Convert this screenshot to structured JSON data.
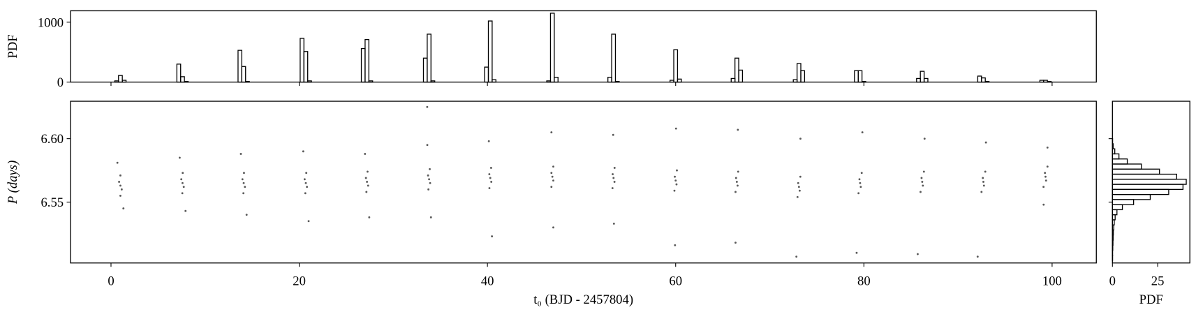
{
  "chart_data": [
    {
      "type": "histogram",
      "orientation": "vertical",
      "ylabel": "PDF",
      "color": "#000000",
      "bins": [
        0.4,
        0.8,
        1.2,
        1.6,
        7.0,
        7.4,
        7.8,
        8.2,
        13.5,
        13.9,
        14.3,
        14.7,
        20.1,
        20.5,
        20.9,
        21.3,
        26.6,
        27.0,
        27.4,
        27.8,
        33.2,
        33.6,
        34.0,
        34.4,
        39.7,
        40.1,
        40.5,
        40.9,
        46.3,
        46.7,
        47.1,
        47.5,
        52.8,
        53.2,
        53.6,
        54.0,
        59.4,
        59.8,
        60.2,
        60.6,
        65.9,
        66.3,
        66.7,
        67.1,
        72.5,
        72.9,
        73.3,
        73.7,
        79.0,
        79.4,
        79.8,
        80.2,
        85.6,
        86.0,
        86.4,
        86.8,
        92.1,
        92.5,
        92.9,
        93.3,
        98.7,
        99.1,
        99.5,
        99.9
      ],
      "counts": [
        20,
        110,
        30,
        0,
        300,
        90,
        10,
        0,
        530,
        260,
        10,
        0,
        730,
        510,
        20,
        0,
        560,
        710,
        20,
        0,
        400,
        800,
        20,
        0,
        250,
        1020,
        40,
        0,
        20,
        1150,
        80,
        0,
        80,
        800,
        10,
        0,
        30,
        540,
        50,
        0,
        60,
        400,
        200,
        0,
        40,
        310,
        190,
        0,
        190,
        190,
        10,
        0,
        60,
        180,
        60,
        0,
        100,
        70,
        10,
        0,
        30,
        30,
        10
      ],
      "xlim": [
        -4.3,
        104.7
      ],
      "ylim": [
        0,
        1190
      ],
      "yticks": [
        0,
        1000
      ]
    },
    {
      "type": "scatter",
      "xlabel": "t₀ (BJD - 2457804)",
      "ylabel": "P (days)",
      "color": "#000000",
      "x": [
        1.32,
        1.0,
        1.14,
        1.0,
        0.86,
        1.0,
        0.68,
        7.92,
        7.58,
        7.73,
        7.6,
        7.47,
        7.62,
        7.3,
        14.41,
        14.07,
        14.23,
        14.1,
        13.97,
        14.13,
        13.8,
        21.0,
        20.65,
        20.82,
        20.7,
        20.58,
        20.75,
        20.43,
        27.44,
        27.14,
        27.32,
        27.2,
        27.09,
        27.26,
        26.99,
        34.0,
        33.73,
        33.91,
        33.8,
        33.69,
        33.87,
        33.61,
        33.6,
        40.48,
        40.21,
        40.41,
        40.3,
        40.2,
        40.39,
        40.15,
        47.0,
        46.8,
        47.0,
        46.9,
        46.8,
        47.0,
        46.8,
        53.44,
        53.29,
        53.5,
        53.4,
        53.31,
        53.51,
        53.36,
        59.93,
        59.87,
        60.09,
        60.0,
        59.91,
        60.13,
        60.04,
        66.36,
        66.36,
        66.58,
        66.5,
        66.42,
        66.64,
        66.61,
        72.83,
        72.95,
        73.18,
        73.1,
        73.02,
        73.25,
        73.26,
        79.23,
        79.43,
        79.67,
        79.6,
        79.53,
        79.77,
        79.84,
        85.72,
        86.02,
        86.27,
        86.2,
        86.13,
        86.38,
        86.45,
        92.09,
        92.5,
        92.76,
        92.7,
        92.64,
        92.9,
        92.97,
        99.1,
        99.09,
        99.36,
        99.3,
        99.24,
        99.51,
        99.51
      ],
      "y": [
        6.545,
        6.555,
        6.56,
        6.563,
        6.566,
        6.571,
        6.581,
        6.543,
        6.557,
        6.562,
        6.565,
        6.568,
        6.573,
        6.585,
        6.54,
        6.557,
        6.562,
        6.565,
        6.568,
        6.573,
        6.588,
        6.535,
        6.557,
        6.562,
        6.565,
        6.568,
        6.573,
        6.59,
        6.538,
        6.558,
        6.563,
        6.566,
        6.569,
        6.574,
        6.588,
        6.538,
        6.56,
        6.565,
        6.568,
        6.571,
        6.576,
        6.595,
        6.625,
        6.523,
        6.561,
        6.566,
        6.569,
        6.572,
        6.577,
        6.598,
        6.53,
        6.562,
        6.567,
        6.57,
        6.573,
        6.578,
        6.605,
        6.533,
        6.561,
        6.566,
        6.569,
        6.572,
        6.577,
        6.603,
        6.516,
        6.559,
        6.564,
        6.567,
        6.57,
        6.575,
        6.608,
        6.518,
        6.558,
        6.563,
        6.566,
        6.569,
        6.574,
        6.607,
        6.507,
        6.554,
        6.559,
        6.562,
        6.565,
        6.57,
        6.6,
        6.51,
        6.557,
        6.562,
        6.565,
        6.568,
        6.573,
        6.605,
        6.509,
        6.558,
        6.563,
        6.566,
        6.569,
        6.574,
        6.6,
        6.507,
        6.558,
        6.563,
        6.566,
        6.569,
        6.574,
        6.597,
        6.548,
        6.562,
        6.567,
        6.57,
        6.573,
        6.578,
        6.593
      ],
      "xlim": [
        -4.3,
        104.7
      ],
      "xticks": [
        0,
        20,
        40,
        60,
        80,
        100
      ],
      "ylim": [
        6.502,
        6.6295
      ],
      "yticks": [
        6.55,
        {
          "value": 6.6,
          "label": "6.60"
        }
      ]
    },
    {
      "type": "histogram",
      "orientation": "horizontal",
      "xlabel": "PDF",
      "color": "#000000",
      "bins": [
        6.504,
        6.508,
        6.512,
        6.516,
        6.52,
        6.524,
        6.528,
        6.532,
        6.536,
        6.54,
        6.544,
        6.548,
        6.552,
        6.556,
        6.56,
        6.564,
        6.568,
        6.572,
        6.576,
        6.58,
        6.584,
        6.588,
        6.592,
        6.596,
        6.6,
        6.604,
        6.608,
        6.612,
        6.616,
        6.62,
        6.624
      ],
      "counts": [
        0.1,
        0.1,
        0.2,
        0.3,
        0.4,
        0.5,
        0.7,
        1,
        1.5,
        2.5,
        5.5,
        11.7,
        20.9,
        31.1,
        39,
        40.8,
        35.5,
        26,
        16,
        8.2,
        3.6,
        1.3,
        0.4,
        0.1,
        0,
        0,
        0,
        0,
        0,
        0
      ],
      "xlim": [
        0,
        42.8
      ],
      "xticks": [
        0,
        25
      ],
      "ylim": [
        6.502,
        6.6295
      ]
    }
  ]
}
